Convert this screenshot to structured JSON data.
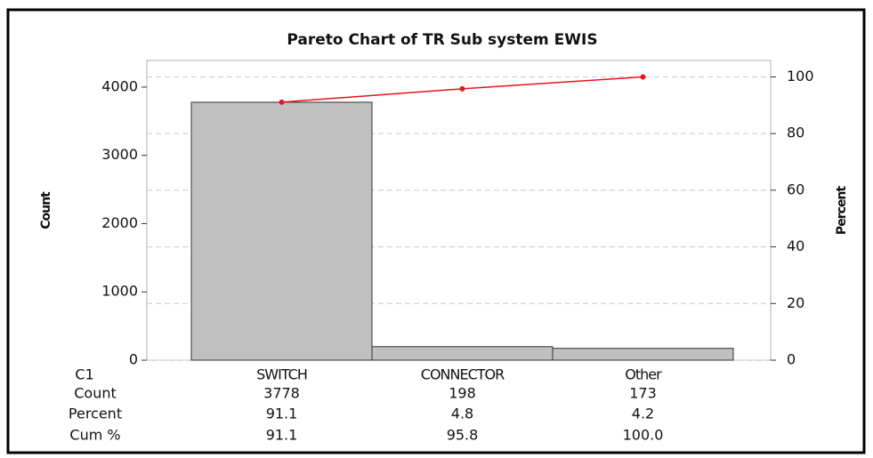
{
  "chart_data": {
    "type": "pareto",
    "title": "Pareto Chart of TR Sub system EWIS",
    "y_label": "Count",
    "y2_label": "Percent",
    "categories_label": "C1",
    "categories": [
      "SWITCH",
      "CONNECTOR",
      "Other"
    ],
    "series": [
      {
        "name": "Count",
        "color": "#c0c0c0",
        "values": [
          3778,
          198,
          173
        ]
      },
      {
        "name": "Percent",
        "values": [
          91.1,
          4.8,
          4.2
        ]
      },
      {
        "name": "Cum %",
        "color": "#e8141e",
        "axis": "y2",
        "values": [
          91.1,
          95.8,
          100
        ],
        "value_labels": [
          "91.1",
          "95.8",
          "100.0"
        ]
      }
    ],
    "ylim": [
      0,
      4390
    ],
    "yticks": [
      0,
      1000,
      2000,
      3000,
      4000
    ],
    "y2lim": [
      0,
      105.8
    ],
    "y2ticks": [
      0,
      20,
      40,
      60,
      80,
      100
    ],
    "grid": "y2"
  }
}
